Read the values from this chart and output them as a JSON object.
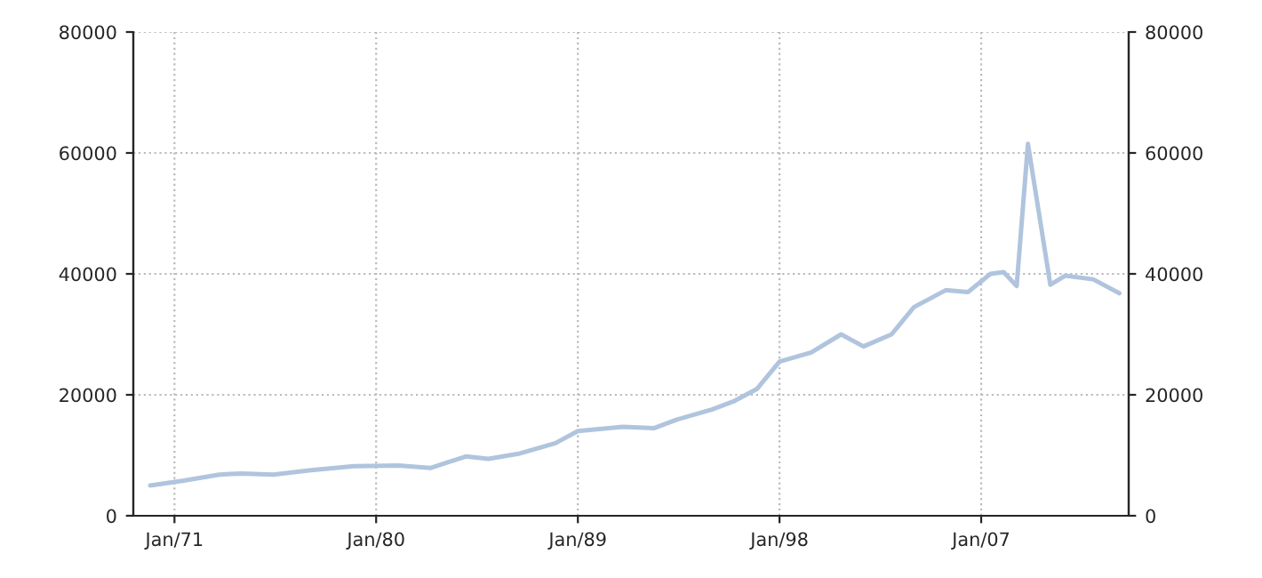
{
  "chart_data": {
    "type": "line",
    "x": [
      "1969-12",
      "1971-06",
      "1973-01",
      "1974-01",
      "1975-06",
      "1977-01",
      "1979-01",
      "1981-01",
      "1982-06",
      "1984-01",
      "1985-01",
      "1986-06",
      "1988-01",
      "1989-01",
      "1991-01",
      "1992-06",
      "1993-06",
      "1995-01",
      "1996-01",
      "1997-01",
      "1998-01",
      "1999-06",
      "2000-10",
      "2001-10",
      "2003-01",
      "2004-01",
      "2005-06",
      "2006-06",
      "2007-06",
      "2008-01",
      "2008-08",
      "2009-02",
      "2010-02",
      "2010-10",
      "2012-01",
      "2013-03"
    ],
    "series": [
      {
        "color": "#b0c4de",
        "values": [
          5000,
          5800,
          6800,
          7000,
          6800,
          7500,
          8200,
          8300,
          7900,
          9800,
          9400,
          10300,
          12000,
          14000,
          14700,
          14500,
          15900,
          17600,
          19000,
          21000,
          25500,
          27000,
          30000,
          28000,
          30000,
          34500,
          37300,
          37000,
          40000,
          40300,
          38000,
          61500,
          38200,
          39700,
          39100,
          36800
        ]
      }
    ],
    "xlim": [
      "1969-03",
      "2013-08"
    ],
    "xticks": [
      {
        "value": "1971-01",
        "label": "Jan/71"
      },
      {
        "value": "1980-01",
        "label": "Jan/80"
      },
      {
        "value": "1989-01",
        "label": "Jan/89"
      },
      {
        "value": "1998-01",
        "label": "Jan/98"
      },
      {
        "value": "2007-01",
        "label": "Jan/07"
      }
    ],
    "ylim": [
      0,
      80000
    ],
    "yticks": [
      0,
      20000,
      40000,
      60000,
      80000
    ],
    "y2lim": [
      0,
      80000
    ],
    "y2ticks": [
      0,
      20000,
      40000,
      60000,
      80000
    ],
    "grid": true
  }
}
